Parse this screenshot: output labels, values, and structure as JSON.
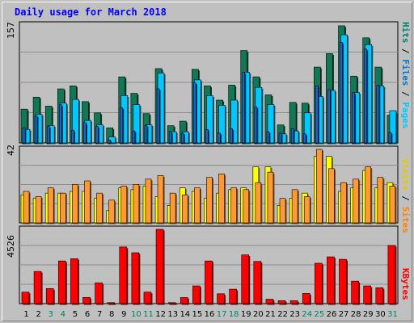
{
  "title": "Daily usage for March 2018",
  "colors": {
    "background": "#c0c0c0",
    "plot_bg": "#c0c0c0",
    "grid": "#8c8c8c",
    "hits": "#117755",
    "files": "#00c8ff",
    "pages": "#1a66cc",
    "visits": "#ffff00",
    "sites": "#ff9933",
    "kbytes": "#ff0000",
    "day_weekday": "#000000",
    "day_weekend": "#00806a",
    "title": "#0000ff"
  },
  "labels": {
    "pages": "Pages",
    "files": "Files",
    "hits": "Hits",
    "sites": "Sites",
    "visits": "Visits",
    "kbytes": "KBytes",
    "sep": " / "
  },
  "chart_data": [
    {
      "type": "bar",
      "panel": "hits-files-pages",
      "categories": [
        "1",
        "2",
        "3",
        "4",
        "5",
        "6",
        "7",
        "8",
        "9",
        "10",
        "11",
        "12",
        "13",
        "14",
        "15",
        "16",
        "17",
        "18",
        "19",
        "20",
        "21",
        "22",
        "23",
        "24",
        "25",
        "26",
        "27",
        "28",
        "29",
        "30",
        "31"
      ],
      "weekend_days": [
        "3",
        "4",
        "10",
        "11",
        "17",
        "18",
        "24",
        "25",
        "31"
      ],
      "ymax_label": "157",
      "ylim": [
        0,
        157
      ],
      "series": [
        {
          "name": "Hits",
          "values": [
            45,
            61,
            49,
            72,
            76,
            55,
            40,
            20,
            88,
            66,
            39,
            99,
            23,
            29,
            98,
            76,
            57,
            77,
            123,
            88,
            64,
            24,
            54,
            53,
            101,
            119,
            156,
            89,
            140,
            101,
            37
          ]
        },
        {
          "name": "Files",
          "values": [
            18,
            38,
            23,
            53,
            58,
            30,
            24,
            8,
            63,
            51,
            24,
            93,
            15,
            15,
            84,
            63,
            50,
            57,
            94,
            74,
            51,
            12,
            16,
            40,
            62,
            70,
            144,
            67,
            131,
            76,
            43
          ]
        },
        {
          "name": "Pages",
          "values": [
            20,
            36,
            22,
            51,
            17,
            27,
            22,
            4,
            47,
            16,
            23,
            72,
            15,
            13,
            80,
            18,
            13,
            19,
            94,
            48,
            15,
            13,
            19,
            12,
            76,
            71,
            134,
            67,
            125,
            77,
            14
          ]
        }
      ]
    },
    {
      "type": "bar",
      "panel": "visits-sites",
      "categories": [
        "1",
        "2",
        "3",
        "4",
        "5",
        "6",
        "7",
        "8",
        "9",
        "10",
        "11",
        "12",
        "13",
        "14",
        "15",
        "16",
        "17",
        "18",
        "19",
        "20",
        "21",
        "22",
        "23",
        "24",
        "25",
        "26",
        "27",
        "28",
        "29",
        "30",
        "31"
      ],
      "ymax_label": "42",
      "ylim": [
        0,
        42
      ],
      "series": [
        {
          "name": "Visits",
          "values": [
            16,
            14,
            17,
            17,
            18,
            18,
            14,
            7,
            20,
            19,
            21,
            15,
            10,
            20,
            18,
            14,
            17,
            19,
            20,
            32,
            32,
            10,
            14,
            17,
            38,
            38,
            18,
            20,
            30,
            20,
            23
          ]
        },
        {
          "name": "Sites",
          "values": [
            18,
            15,
            20,
            17,
            22,
            24,
            17,
            13,
            21,
            22,
            25,
            27,
            17,
            16,
            20,
            26,
            28,
            20,
            19,
            23,
            29,
            14,
            19,
            15,
            42,
            31,
            23,
            25,
            32,
            26,
            21
          ]
        }
      ]
    },
    {
      "type": "bar",
      "panel": "kbytes",
      "categories": [
        "1",
        "2",
        "3",
        "4",
        "5",
        "6",
        "7",
        "8",
        "9",
        "10",
        "11",
        "12",
        "13",
        "14",
        "15",
        "16",
        "17",
        "18",
        "19",
        "20",
        "21",
        "22",
        "23",
        "24",
        "25",
        "26",
        "27",
        "28",
        "29",
        "30",
        "31"
      ],
      "ymax_label": "4526",
      "ylim": [
        0,
        4526
      ],
      "series": [
        {
          "name": "KBytes",
          "values": [
            700,
            1960,
            920,
            2600,
            2740,
            380,
            1270,
            60,
            3450,
            3100,
            700,
            4526,
            60,
            370,
            1080,
            2600,
            600,
            880,
            2970,
            2570,
            270,
            180,
            180,
            620,
            2460,
            2850,
            2700,
            1370,
            1080,
            970,
            3540
          ]
        }
      ]
    }
  ]
}
